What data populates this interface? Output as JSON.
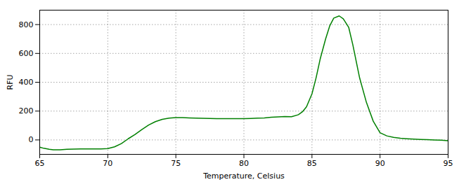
{
  "chart_data": {
    "type": "line",
    "xlabel": "Temperature, Celsius",
    "ylabel": "RFU",
    "color": "#008000",
    "xlim": [
      65,
      95
    ],
    "ylim": [
      -100,
      900
    ],
    "xticks": [
      65,
      70,
      75,
      80,
      85,
      90,
      95
    ],
    "yticks": [
      0,
      200,
      400,
      600,
      800
    ],
    "grid": true,
    "x": [
      65.0,
      65.3,
      65.7,
      66.0,
      66.5,
      67.0,
      67.5,
      68.0,
      68.5,
      69.0,
      69.5,
      70.0,
      70.5,
      71.0,
      71.5,
      72.0,
      72.5,
      73.0,
      73.5,
      74.0,
      74.5,
      75.0,
      75.5,
      76.0,
      76.5,
      77.0,
      77.5,
      78.0,
      78.5,
      79.0,
      79.5,
      80.0,
      80.5,
      81.0,
      81.5,
      82.0,
      82.5,
      83.0,
      83.5,
      84.0,
      84.3,
      84.6,
      85.0,
      85.3,
      85.6,
      86.0,
      86.3,
      86.6,
      87.0,
      87.3,
      87.7,
      88.0,
      88.5,
      89.0,
      89.5,
      90.0,
      90.5,
      91.0,
      91.5,
      92.0,
      92.5,
      93.0,
      93.5,
      94.0,
      94.5,
      95.0
    ],
    "values": [
      -50,
      -58,
      -65,
      -68,
      -68,
      -65,
      -63,
      -62,
      -62,
      -62,
      -62,
      -60,
      -48,
      -25,
      8,
      38,
      72,
      103,
      127,
      143,
      151,
      155,
      155,
      153,
      151,
      150,
      149,
      148,
      148,
      148,
      148,
      148,
      149,
      151,
      153,
      157,
      160,
      162,
      161,
      175,
      195,
      230,
      320,
      430,
      560,
      700,
      790,
      845,
      860,
      840,
      780,
      660,
      430,
      260,
      130,
      50,
      28,
      18,
      12,
      8,
      5,
      3,
      2,
      0,
      -2,
      -5
    ]
  }
}
